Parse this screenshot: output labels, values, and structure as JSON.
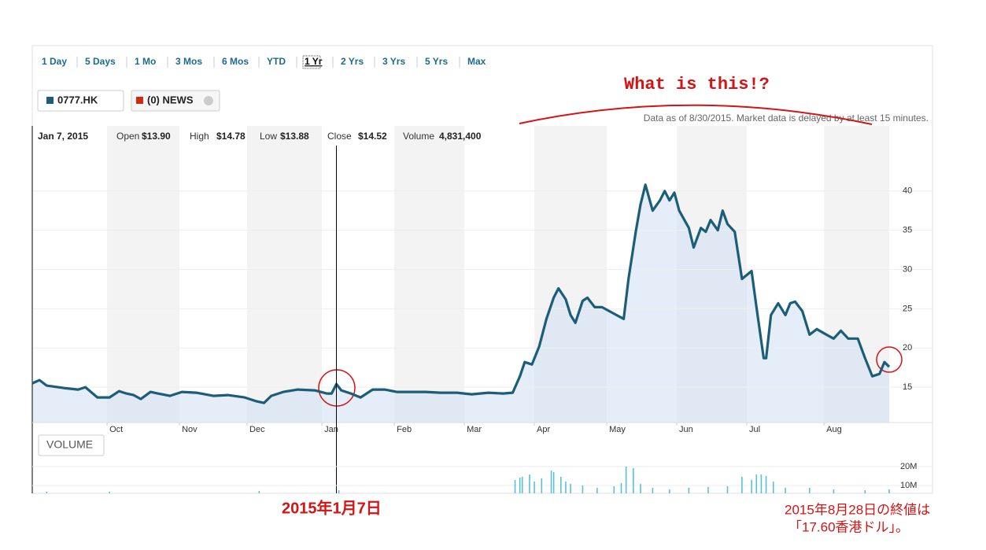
{
  "toolbar": [
    "1 Day",
    "5 Days",
    "1 Mo",
    "3 Mos",
    "6 Mos",
    "YTD",
    "1 Yr",
    "2 Yrs",
    "3 Yrs",
    "5 Yrs",
    "Max"
  ],
  "news_chip": "(0) NEWS",
  "notice": "Data as of 8/30/2015. Market data is delayed by at least 15 minutes.",
  "hover": {
    "date": "Jan 7, 2015",
    "open_label": "Open",
    "open": "$13.90",
    "high_label": "High",
    "high": "$14.78",
    "low_label": "Low",
    "low": "$13.88",
    "close_label": "Close",
    "close": "$14.52",
    "volume_label": "Volume",
    "volume": "4,831,400"
  },
  "volume_button": "VOLUME",
  "annotations": {
    "question": "What is this!?",
    "date": "2015年1月7日",
    "close_line1": "2015年8月28日の終値は",
    "close_line2": "「17.60香港ドル」。"
  },
  "chart_data": [
    {
      "type": "line",
      "series": [
        {
          "name": "0777.HK",
          "color": "#1c5d78",
          "x": [
            0,
            3,
            6,
            13,
            19,
            22,
            27,
            32,
            36,
            39,
            42,
            45,
            49,
            52,
            57,
            62,
            68,
            75,
            81,
            88,
            93,
            96,
            99,
            104,
            110,
            117,
            122,
            124,
            126,
            128,
            132,
            136,
            141,
            146,
            151,
            156,
            163,
            169,
            176,
            182,
            189,
            195,
            199,
            202,
            204,
            207,
            210,
            213,
            216,
            218,
            221,
            223,
            225,
            228,
            230,
            233,
            236,
            239,
            242,
            245,
            247,
            250,
            252,
            254,
            257,
            260,
            262,
            264,
            266,
            268,
            272,
            274,
            277,
            279,
            281,
            284,
            286,
            288,
            291,
            294,
            298,
            300,
            303,
            304,
            306,
            309,
            312,
            314,
            316,
            319,
            322,
            325,
            329,
            332,
            335,
            338,
            342,
            345,
            348,
            351,
            353,
            355
          ],
          "values": [
            15.5,
            15.9,
            15.2,
            14.9,
            14.7,
            15.0,
            13.7,
            13.7,
            14.5,
            14.2,
            14.0,
            13.5,
            14.4,
            14.2,
            13.9,
            14.4,
            14.3,
            13.9,
            14.0,
            13.7,
            13.2,
            13.0,
            13.9,
            14.4,
            14.7,
            14.6,
            14.2,
            14.2,
            15.4,
            14.6,
            14.2,
            13.7,
            14.7,
            14.7,
            14.4,
            14.4,
            14.4,
            14.3,
            14.3,
            14.1,
            14.3,
            14.2,
            14.3,
            16.4,
            18.2,
            17.9,
            20.2,
            23.7,
            26.4,
            27.6,
            26.2,
            24.2,
            23.2,
            26.0,
            26.4,
            25.2,
            25.2,
            24.7,
            24.2,
            23.7,
            28.8,
            34.8,
            38.3,
            40.8,
            37.5,
            38.8,
            40.0,
            38.8,
            39.8,
            37.5,
            35.3,
            32.8,
            35.3,
            34.8,
            36.3,
            35.0,
            37.5,
            35.8,
            34.8,
            28.8,
            29.8,
            25.2,
            18.7,
            18.7,
            24.2,
            25.7,
            24.2,
            25.7,
            25.9,
            24.7,
            21.7,
            22.4,
            21.7,
            21.2,
            22.2,
            21.2,
            21.2,
            18.7,
            16.4,
            16.7,
            18.2,
            17.6
          ]
        }
      ],
      "xlim": [
        0,
        355
      ],
      "xticks": [
        {
          "value": 31,
          "label": "Oct"
        },
        {
          "value": 61,
          "label": "Nov"
        },
        {
          "value": 89,
          "label": "Dec"
        },
        {
          "value": 120,
          "label": "Jan"
        },
        {
          "value": 150,
          "label": "Feb"
        },
        {
          "value": 179,
          "label": "Mar"
        },
        {
          "value": 208,
          "label": "Apr"
        },
        {
          "value": 238,
          "label": "May"
        },
        {
          "value": 267,
          "label": "Jun"
        },
        {
          "value": 296,
          "label": "Jul"
        },
        {
          "value": 328,
          "label": "Aug"
        }
      ],
      "ylim": [
        10.5,
        48.3
      ],
      "yticks": [
        15,
        20,
        25,
        30,
        35,
        40
      ],
      "grid": true,
      "crosshair": 126
    },
    {
      "type": "bar",
      "color": "#5bc0d6",
      "x": [
        6,
        32,
        94,
        127,
        200,
        202,
        203,
        206,
        208,
        211,
        215,
        216,
        219,
        221,
        223,
        228,
        234,
        241,
        244,
        246,
        249,
        252,
        257,
        264,
        272,
        280,
        288,
        294,
        298,
        300,
        302,
        304,
        307,
        312,
        322,
        332,
        345,
        355
      ],
      "values": [
        6700000,
        6700000,
        7100000,
        7500000,
        12900000,
        14200000,
        14600000,
        15800000,
        12100000,
        13800000,
        17900000,
        17100000,
        14600000,
        12100000,
        10800000,
        10000000,
        8800000,
        9600000,
        11300000,
        20000000,
        19200000,
        10800000,
        8800000,
        7900000,
        8800000,
        9200000,
        9600000,
        14600000,
        12900000,
        15800000,
        15800000,
        15000000,
        12100000,
        8800000,
        8800000,
        7900000,
        7500000,
        7900000
      ],
      "xlim": [
        0,
        355
      ],
      "ylim": [
        0,
        23300000
      ],
      "yticks": [
        {
          "value": 10000000,
          "label": "10M"
        },
        {
          "value": 20000000,
          "label": "20M"
        }
      ]
    }
  ]
}
